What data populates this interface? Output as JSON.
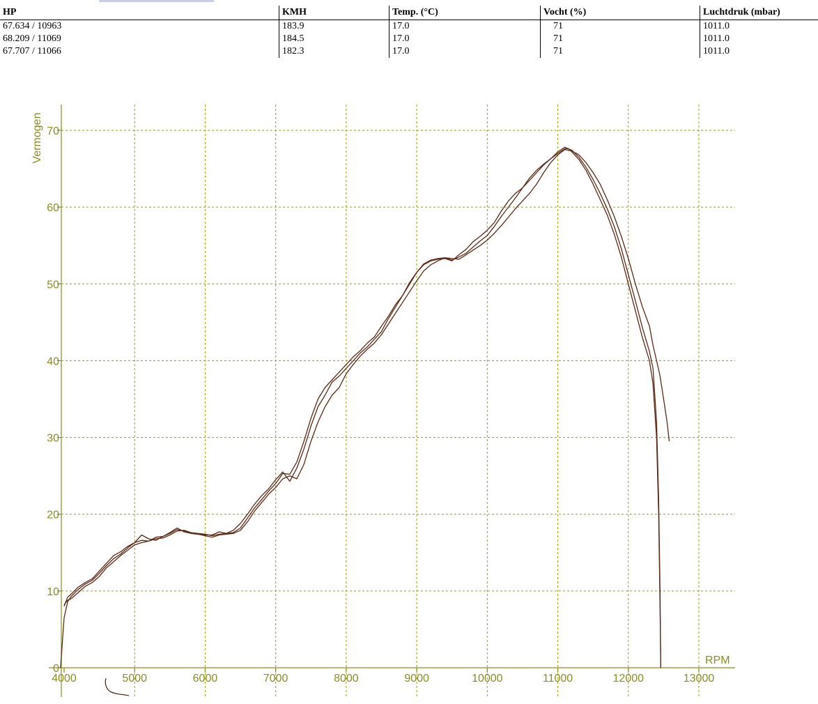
{
  "table": {
    "headers": [
      "HP",
      "KMH",
      "Temp. (°C)",
      "Vocht (%)",
      "Luchtdruk (mbar)"
    ],
    "rows": [
      [
        "67.634 / 10963",
        "183.9",
        "17.0",
        "71",
        "1011.0"
      ],
      [
        "68.209 / 11069",
        "184.5",
        "17.0",
        "71",
        "1011.0"
      ],
      [
        "67.707 / 11066",
        "182.3",
        "17.0",
        "71",
        "1011.0"
      ]
    ]
  },
  "chart_data": {
    "type": "line",
    "ylabel": "Vermogen",
    "xlabel": "RPM",
    "xlim": [
      4000,
      13000
    ],
    "ylim": [
      0,
      70
    ],
    "x_ticks": [
      4000,
      5000,
      6000,
      7000,
      8000,
      9000,
      10000,
      11000,
      12000,
      13000
    ],
    "y_ticks": [
      0,
      10,
      20,
      30,
      40,
      50,
      60,
      70
    ],
    "grid": true,
    "colors": {
      "axis": "#8c8c1e",
      "grid": "#9a9a1a",
      "line": "#5c2a14"
    },
    "series": [
      {
        "color": "#5c2a14",
        "x": [
          3950,
          4000,
          4050,
          4100,
          4200,
          4300,
          4400,
          4500,
          4600,
          4700,
          4800,
          4900,
          5000,
          5100,
          5200,
          5300,
          5400,
          5500,
          5600,
          5700,
          5800,
          6000,
          6100,
          6200,
          6300,
          6400,
          6500,
          6600,
          6700,
          6800,
          6900,
          7000,
          7100,
          7200,
          7300,
          7400,
          7500,
          7600,
          7700,
          7800,
          7900,
          8000,
          8100,
          8200,
          8300,
          8400,
          8500,
          8600,
          8700,
          8800,
          8900,
          9000,
          9100,
          9200,
          9300,
          9400,
          9500,
          9600,
          9700,
          9800,
          9900,
          10000,
          10100,
          10200,
          10300,
          10400,
          10500,
          10600,
          10700,
          10800,
          10900,
          11000,
          11100,
          11150,
          11200,
          11300,
          11400,
          11500,
          11600,
          11700,
          11800,
          11900,
          12000,
          12100,
          12200,
          12300,
          12350,
          12400,
          12430,
          12450,
          12460
        ],
        "y": [
          0,
          6.5,
          8.6,
          9.3,
          10.2,
          10.9,
          11.4,
          12.3,
          13.3,
          14.2,
          14.8,
          15.6,
          16.3,
          16.6,
          16.5,
          17.0,
          17.1,
          17.5,
          18.0,
          17.8,
          17.6,
          17.4,
          17.2,
          17.4,
          17.5,
          17.6,
          18.2,
          19.5,
          20.8,
          21.9,
          23.0,
          24.0,
          25.3,
          25.2,
          26.8,
          29.5,
          32.5,
          35.0,
          36.5,
          37.5,
          38.5,
          39.5,
          40.5,
          41.3,
          42.3,
          43.1,
          44.5,
          45.8,
          47.3,
          48.5,
          50.0,
          51.5,
          52.5,
          53.0,
          53.2,
          53.3,
          53.0,
          53.8,
          54.5,
          55.5,
          56.2,
          57.0,
          58.0,
          59.5,
          60.8,
          61.8,
          62.5,
          63.5,
          64.5,
          65.5,
          66.3,
          67.0,
          67.6,
          67.6,
          67.2,
          66.2,
          64.8,
          63.0,
          61.0,
          59.0,
          56.5,
          53.5,
          50.0,
          46.5,
          43.0,
          40.0,
          37.0,
          30.0,
          20.0,
          8.0,
          0
        ]
      },
      {
        "color": "#5c2a14",
        "x": [
          4000,
          4050,
          4100,
          4200,
          4300,
          4400,
          4500,
          4600,
          4700,
          4800,
          4900,
          5000,
          5100,
          5200,
          5300,
          5400,
          5500,
          5600,
          5700,
          5800,
          6000,
          6100,
          6200,
          6300,
          6400,
          6500,
          6600,
          6700,
          6800,
          6900,
          7000,
          7100,
          7200,
          7300,
          7400,
          7500,
          7600,
          7700,
          7800,
          7900,
          8000,
          8100,
          8200,
          8300,
          8400,
          8500,
          8600,
          8700,
          8800,
          8900,
          9000,
          9100,
          9200,
          9300,
          9400,
          9500,
          9600,
          9700,
          9800,
          9900,
          10000,
          10100,
          10200,
          10300,
          10400,
          10500,
          10600,
          10700,
          10800,
          10900,
          11000,
          11100,
          11200,
          11300,
          11400,
          11500,
          11600,
          11700,
          11800,
          11900,
          12000,
          12100,
          12200,
          12300,
          12350,
          12400,
          12430,
          12450,
          12460
        ],
        "y": [
          8.0,
          9.2,
          9.6,
          10.5,
          11.1,
          11.6,
          12.6,
          13.6,
          14.6,
          15.1,
          15.8,
          16.3,
          17.3,
          16.8,
          16.6,
          17.1,
          17.6,
          18.2,
          17.7,
          17.5,
          17.3,
          17.3,
          17.7,
          17.5,
          17.9,
          18.8,
          20.0,
          21.3,
          22.4,
          23.3,
          24.5,
          25.5,
          24.3,
          26.0,
          28.5,
          31.5,
          34.0,
          35.5,
          37.2,
          38.0,
          39.0,
          40.0,
          41.0,
          41.8,
          42.8,
          43.8,
          45.5,
          47.0,
          48.5,
          50.2,
          51.5,
          52.6,
          53.1,
          53.3,
          53.4,
          53.1,
          53.5,
          54.0,
          54.8,
          55.6,
          56.3,
          57.5,
          58.8,
          60.0,
          61.2,
          62.5,
          63.8,
          64.8,
          65.6,
          66.3,
          67.2,
          67.8,
          67.4,
          66.5,
          65.2,
          63.6,
          61.8,
          59.8,
          57.5,
          54.6,
          51.2,
          47.8,
          44.3,
          41.2,
          39.0,
          32.0,
          22.0,
          10.0,
          0
        ]
      },
      {
        "color": "#5c2a14",
        "x": [
          4000,
          4050,
          4100,
          4200,
          4300,
          4400,
          4500,
          4600,
          4700,
          4800,
          4900,
          5000,
          5100,
          5200,
          5300,
          5400,
          5500,
          5600,
          5700,
          5800,
          6000,
          6100,
          6200,
          6300,
          6400,
          6500,
          6600,
          6700,
          6800,
          6900,
          7000,
          7100,
          7200,
          7300,
          7400,
          7500,
          7600,
          7700,
          7800,
          7900,
          8000,
          8100,
          8200,
          8300,
          8400,
          8500,
          8600,
          8700,
          8800,
          8900,
          9000,
          9100,
          9200,
          9300,
          9400,
          9500,
          9600,
          9700,
          9800,
          9900,
          10000,
          10100,
          10200,
          10300,
          10400,
          10500,
          10600,
          10700,
          10800,
          10900,
          11000,
          11100,
          11200,
          11300,
          11400,
          11500,
          11600,
          11700,
          11800,
          11900,
          12000,
          12100,
          12200,
          12300,
          12350,
          12400,
          12450,
          12500,
          12550,
          12580
        ],
        "y": [
          8.2,
          8.8,
          9.0,
          9.8,
          10.6,
          11.1,
          11.9,
          13.0,
          13.8,
          14.6,
          15.3,
          16.0,
          16.3,
          16.5,
          16.8,
          16.9,
          17.3,
          17.8,
          17.9,
          17.6,
          17.2,
          17.0,
          17.3,
          17.4,
          17.5,
          17.9,
          19.0,
          20.4,
          21.5,
          22.6,
          23.5,
          24.6,
          25.0,
          24.6,
          26.5,
          29.5,
          32.0,
          34.0,
          35.5,
          36.5,
          38.3,
          39.5,
          40.6,
          41.5,
          42.3,
          43.4,
          44.8,
          46.2,
          47.6,
          49.0,
          50.4,
          51.7,
          52.5,
          53.0,
          53.4,
          53.3,
          53.2,
          53.8,
          54.4,
          55.0,
          55.7,
          56.6,
          57.6,
          58.7,
          59.8,
          60.8,
          61.8,
          63.0,
          64.5,
          65.8,
          66.8,
          67.5,
          67.3,
          66.8,
          65.8,
          64.5,
          63.0,
          61.0,
          58.8,
          56.2,
          53.3,
          50.0,
          47.0,
          44.5,
          42.0,
          40.0,
          38.0,
          35.0,
          32.0,
          29.5
        ]
      }
    ]
  },
  "annotation": {
    "scribble_color": "#5c2a14"
  }
}
